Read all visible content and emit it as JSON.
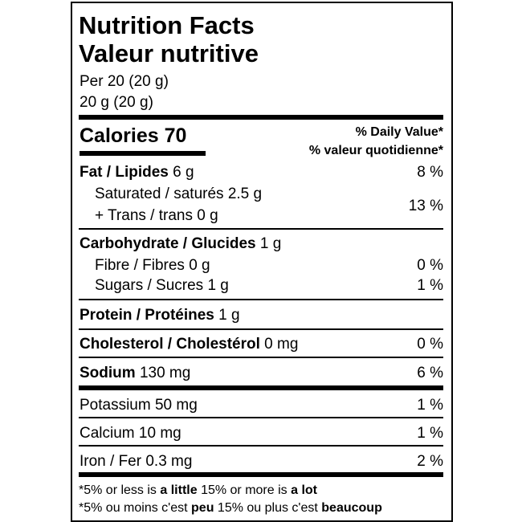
{
  "title_en": "Nutrition Facts",
  "title_fr": "Valeur nutritive",
  "serving_1": "Per 20 (20 g)",
  "serving_2": "20 g (20 g)",
  "calories": {
    "label": "Calories",
    "value": "70"
  },
  "dv_en": "% Daily Value*",
  "dv_fr": "% valeur quotidienne*",
  "rows": {
    "fat": {
      "label": "Fat / Lipides",
      "amount": "6 g",
      "dv": "8 %"
    },
    "saturated": {
      "label": "Saturated / saturés 2.5 g"
    },
    "trans": {
      "label": "+ Trans / trans 0 g",
      "dv": "13 %"
    },
    "carb": {
      "label": "Carbohydrate / Glucides",
      "amount": "1 g"
    },
    "fibre": {
      "label": "Fibre / Fibres 0 g",
      "dv": "0 %"
    },
    "sugars": {
      "label": "Sugars / Sucres 1 g",
      "dv": "1 %"
    },
    "protein": {
      "label": "Protein / Protéines",
      "amount": "1 g"
    },
    "cholesterol": {
      "label": "Cholesterol / Cholestérol",
      "amount": "0 mg",
      "dv": "0 %"
    },
    "sodium": {
      "label": "Sodium",
      "amount": "130 mg",
      "dv": "6 %"
    },
    "potassium": {
      "label": "Potassium 50 mg",
      "dv": "1 %"
    },
    "calcium": {
      "label": "Calcium 10 mg",
      "dv": "1 %"
    },
    "iron": {
      "label": "Iron / Fer 0.3 mg",
      "dv": "2 %"
    }
  },
  "footnote_en": {
    "a": "*5% or less is",
    "b": "a little",
    "c": "15% or more is",
    "d": "a lot"
  },
  "footnote_fr": {
    "a": "*5% ou moins c'est",
    "b": "peu",
    "c": "15% ou plus c'est",
    "d": "beaucoup"
  }
}
